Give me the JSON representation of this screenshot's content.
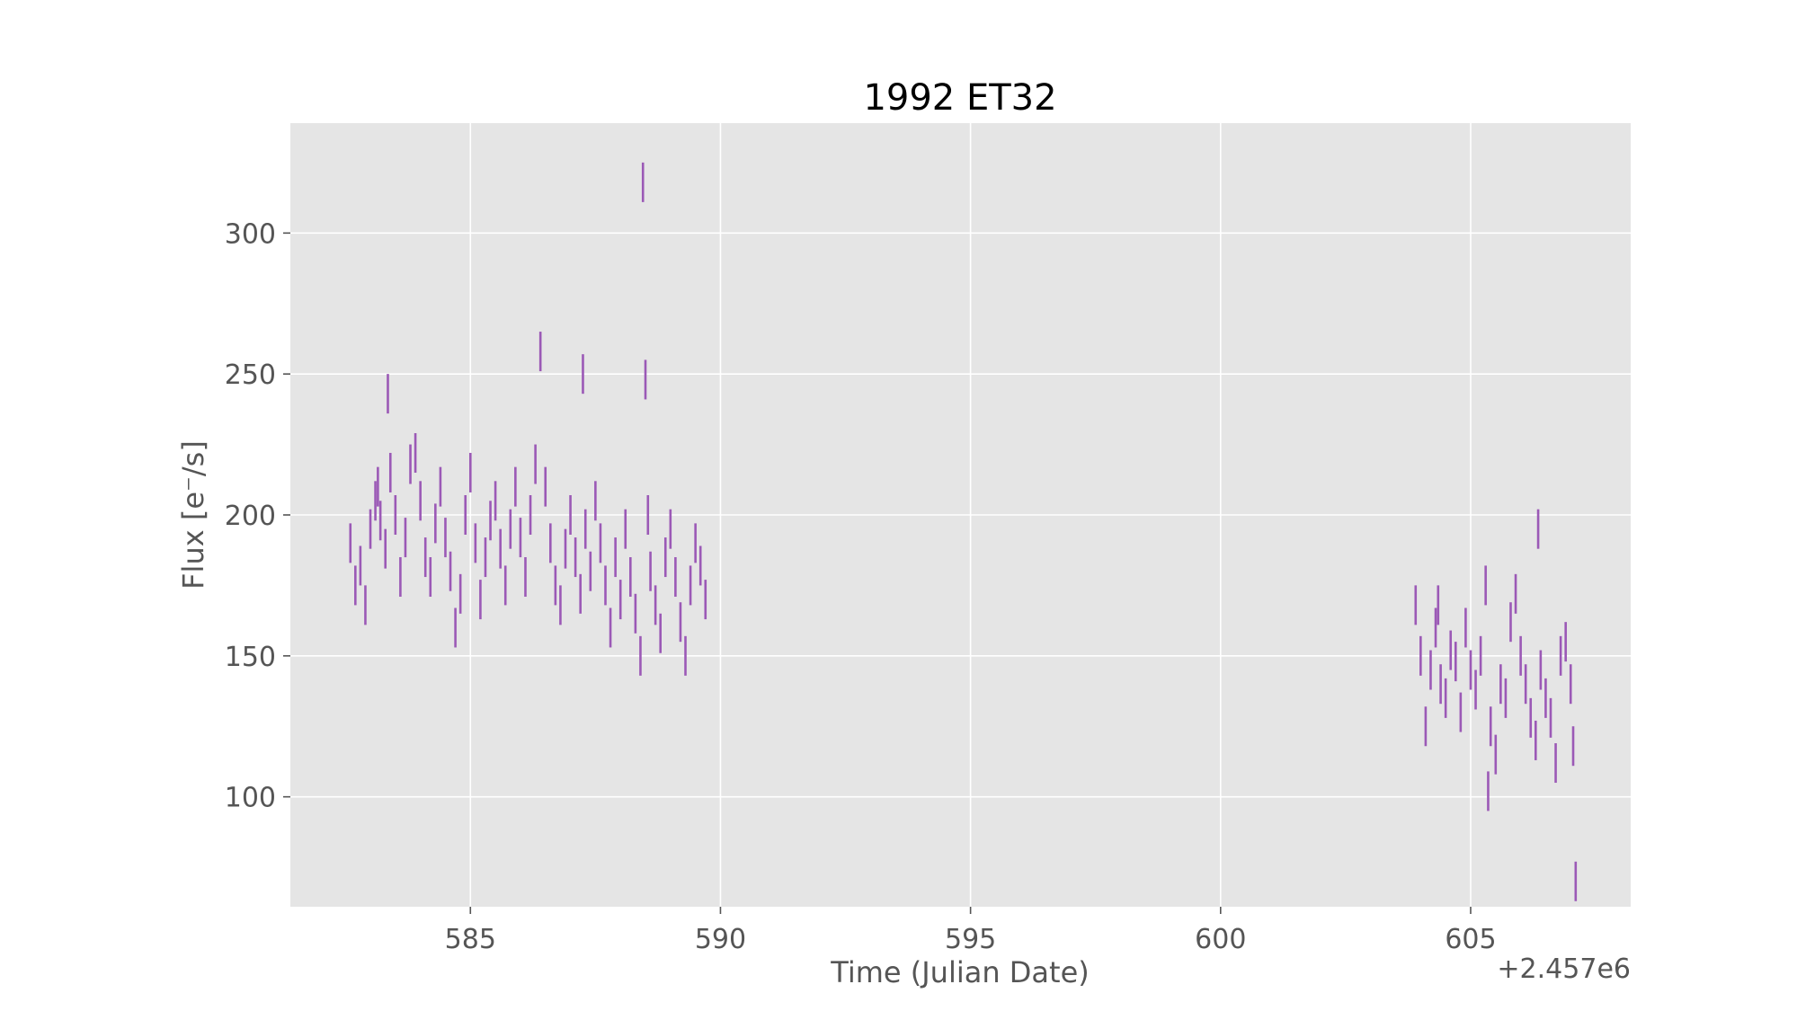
{
  "chart_data": {
    "type": "scatter",
    "title": "1992 ET32",
    "xlabel": "Time (Julian Date)",
    "ylabel": "Flux [e⁻/s]",
    "x_offset_label": "+2.457e6",
    "xlim": [
      581.4,
      608.2
    ],
    "ylim": [
      61,
      339
    ],
    "xticks": [
      585,
      590,
      595,
      600,
      605
    ],
    "yticks": [
      100,
      150,
      200,
      250,
      300
    ],
    "grid": true,
    "background": "#e5e5e5",
    "grid_color": "#ffffff",
    "series": [
      {
        "color": "#9b59b6",
        "points": [
          [
            582.6,
            190
          ],
          [
            582.7,
            175
          ],
          [
            582.8,
            182
          ],
          [
            582.9,
            168
          ],
          [
            583.0,
            195
          ],
          [
            583.1,
            205
          ],
          [
            583.15,
            210
          ],
          [
            583.2,
            198
          ],
          [
            583.3,
            188
          ],
          [
            583.35,
            243
          ],
          [
            583.4,
            215
          ],
          [
            583.5,
            200
          ],
          [
            583.6,
            178
          ],
          [
            583.7,
            192
          ],
          [
            583.8,
            218
          ],
          [
            583.9,
            222
          ],
          [
            584.0,
            205
          ],
          [
            584.1,
            185
          ],
          [
            584.2,
            178
          ],
          [
            584.3,
            197
          ],
          [
            584.4,
            210
          ],
          [
            584.5,
            192
          ],
          [
            584.6,
            180
          ],
          [
            584.7,
            160
          ],
          [
            584.8,
            172
          ],
          [
            584.9,
            200
          ],
          [
            585.0,
            215
          ],
          [
            585.1,
            190
          ],
          [
            585.2,
            170
          ],
          [
            585.3,
            185
          ],
          [
            585.4,
            198
          ],
          [
            585.5,
            205
          ],
          [
            585.6,
            188
          ],
          [
            585.7,
            175
          ],
          [
            585.8,
            195
          ],
          [
            585.9,
            210
          ],
          [
            586.0,
            192
          ],
          [
            586.1,
            178
          ],
          [
            586.2,
            200
          ],
          [
            586.3,
            218
          ],
          [
            586.4,
            258
          ],
          [
            586.5,
            210
          ],
          [
            586.6,
            190
          ],
          [
            586.7,
            175
          ],
          [
            586.8,
            168
          ],
          [
            586.9,
            188
          ],
          [
            587.0,
            200
          ],
          [
            587.1,
            185
          ],
          [
            587.2,
            172
          ],
          [
            587.25,
            250
          ],
          [
            587.3,
            195
          ],
          [
            587.4,
            180
          ],
          [
            587.5,
            205
          ],
          [
            587.6,
            190
          ],
          [
            587.7,
            175
          ],
          [
            587.8,
            160
          ],
          [
            587.9,
            185
          ],
          [
            588.0,
            170
          ],
          [
            588.1,
            195
          ],
          [
            588.2,
            178
          ],
          [
            588.3,
            165
          ],
          [
            588.4,
            150
          ],
          [
            588.45,
            318
          ],
          [
            588.5,
            248
          ],
          [
            588.55,
            200
          ],
          [
            588.6,
            180
          ],
          [
            588.7,
            168
          ],
          [
            588.8,
            158
          ],
          [
            588.9,
            185
          ],
          [
            589.0,
            195
          ],
          [
            589.1,
            178
          ],
          [
            589.2,
            162
          ],
          [
            589.3,
            150
          ],
          [
            589.4,
            175
          ],
          [
            589.5,
            190
          ],
          [
            589.6,
            182
          ],
          [
            589.7,
            170
          ],
          [
            603.9,
            168
          ],
          [
            604.0,
            150
          ],
          [
            604.1,
            125
          ],
          [
            604.2,
            145
          ],
          [
            604.3,
            160
          ],
          [
            604.35,
            168
          ],
          [
            604.4,
            140
          ],
          [
            604.5,
            135
          ],
          [
            604.6,
            152
          ],
          [
            604.7,
            148
          ],
          [
            604.8,
            130
          ],
          [
            604.9,
            160
          ],
          [
            605.0,
            145
          ],
          [
            605.1,
            138
          ],
          [
            605.2,
            150
          ],
          [
            605.3,
            175
          ],
          [
            605.35,
            102
          ],
          [
            605.4,
            125
          ],
          [
            605.5,
            115
          ],
          [
            605.6,
            140
          ],
          [
            605.7,
            135
          ],
          [
            605.8,
            162
          ],
          [
            605.9,
            172
          ],
          [
            606.0,
            150
          ],
          [
            606.1,
            140
          ],
          [
            606.2,
            128
          ],
          [
            606.3,
            120
          ],
          [
            606.35,
            195
          ],
          [
            606.4,
            145
          ],
          [
            606.5,
            135
          ],
          [
            606.6,
            128
          ],
          [
            606.7,
            112
          ],
          [
            606.8,
            150
          ],
          [
            606.9,
            155
          ],
          [
            607.0,
            140
          ],
          [
            607.05,
            118
          ],
          [
            607.1,
            70
          ]
        ]
      }
    ]
  }
}
